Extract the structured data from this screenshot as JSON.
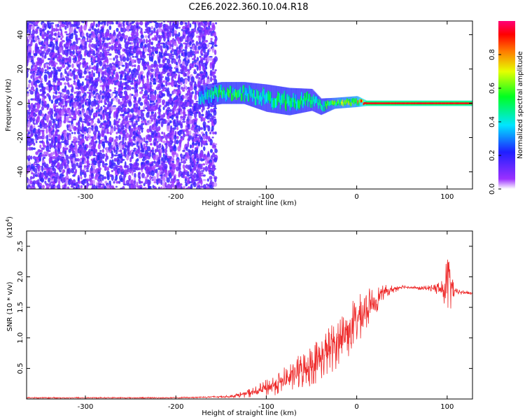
{
  "title": "C2E6.2022.360.10.04.R18",
  "colors": {
    "snr_line": "#ee2a2a",
    "plot_border": "#000000"
  },
  "chart_data": [
    {
      "type": "heatmap",
      "xlabel": "Height of straight line (km)",
      "ylabel": "Frequency (Hz)",
      "xlim": [
        -365,
        128
      ],
      "ylim": [
        -50,
        48
      ],
      "xticks": [
        {
          "value": -300,
          "label": "-300"
        },
        {
          "value": -200,
          "label": "-200"
        },
        {
          "value": -100,
          "label": "-100"
        },
        {
          "value": 0,
          "label": "0"
        },
        {
          "value": 100,
          "label": "100"
        }
      ],
      "yticks": [
        {
          "value": -40,
          "label": "-40"
        },
        {
          "value": -20,
          "label": "-20"
        },
        {
          "value": 0,
          "label": "0"
        },
        {
          "value": 20,
          "label": "20"
        },
        {
          "value": 40,
          "label": "40"
        }
      ],
      "colorbar": {
        "label": "Normalized spectral amplitude",
        "range": [
          0,
          1
        ],
        "colormap": "rainbow",
        "ticks": [
          {
            "value": 0.0,
            "label": "0.0"
          },
          {
            "value": 0.2,
            "label": "0.2"
          },
          {
            "value": 0.4,
            "label": "0.4"
          },
          {
            "value": 0.6,
            "label": "0.6"
          },
          {
            "value": 0.8,
            "label": "0.8"
          }
        ]
      },
      "noise_region": {
        "x_range": [
          -365,
          -155
        ],
        "y_range": [
          -50,
          48
        ],
        "amplitude": 0.15
      },
      "signal_track": [
        {
          "x": -175,
          "y": 4,
          "spread": 4,
          "amplitude": 0.35
        },
        {
          "x": -150,
          "y": 6,
          "spread": 4,
          "amplitude": 0.5
        },
        {
          "x": -125,
          "y": 6,
          "spread": 4,
          "amplitude": 0.5
        },
        {
          "x": -100,
          "y": 3,
          "spread": 5,
          "amplitude": 0.45
        },
        {
          "x": -75,
          "y": 1,
          "spread": 5,
          "amplitude": 0.5
        },
        {
          "x": -50,
          "y": 2,
          "spread": 4,
          "amplitude": 0.45
        },
        {
          "x": -40,
          "y": -2,
          "spread": 3,
          "amplitude": 0.45
        },
        {
          "x": -25,
          "y": 0,
          "spread": 2,
          "amplitude": 0.6
        },
        {
          "x": 0,
          "y": 1,
          "spread": 2,
          "amplitude": 0.7
        },
        {
          "x": 10,
          "y": 0,
          "spread": 1,
          "amplitude": 0.95
        },
        {
          "x": 128,
          "y": 0,
          "spread": 1,
          "amplitude": 0.95
        }
      ]
    },
    {
      "type": "line",
      "xlabel": "Height of straight line (km)",
      "ylabel": "SNR (10 * v/v)",
      "y_multiplier_label": "(x10",
      "y_multiplier_exp": "4",
      "xlim": [
        -365,
        128
      ],
      "ylim": [
        0,
        2.75
      ],
      "xticks": [
        {
          "value": -300,
          "label": "-300"
        },
        {
          "value": -200,
          "label": "-200"
        },
        {
          "value": -100,
          "label": "-100"
        },
        {
          "value": 0,
          "label": "0"
        },
        {
          "value": 100,
          "label": "100"
        }
      ],
      "yticks": [
        {
          "value": 0.5,
          "label": "0.5"
        },
        {
          "value": 1.0,
          "label": "1.0"
        },
        {
          "value": 1.5,
          "label": "1.5"
        },
        {
          "value": 2.0,
          "label": "2.0"
        },
        {
          "value": 2.5,
          "label": "2.5"
        }
      ],
      "series": [
        {
          "envelope": [
            {
              "x": -365,
              "y": 0.02,
              "noise": 0.01
            },
            {
              "x": -200,
              "y": 0.02,
              "noise": 0.01
            },
            {
              "x": -140,
              "y": 0.04,
              "noise": 0.02
            },
            {
              "x": -110,
              "y": 0.12,
              "noise": 0.1
            },
            {
              "x": -80,
              "y": 0.3,
              "noise": 0.22
            },
            {
              "x": -50,
              "y": 0.55,
              "noise": 0.35
            },
            {
              "x": -30,
              "y": 0.8,
              "noise": 0.4
            },
            {
              "x": -10,
              "y": 1.1,
              "noise": 0.45
            },
            {
              "x": 10,
              "y": 1.45,
              "noise": 0.35
            },
            {
              "x": 30,
              "y": 1.75,
              "noise": 0.12
            },
            {
              "x": 50,
              "y": 1.84,
              "noise": 0.03
            },
            {
              "x": 70,
              "y": 1.81,
              "noise": 0.03
            },
            {
              "x": 85,
              "y": 1.82,
              "noise": 0.06
            },
            {
              "x": 95,
              "y": 1.78,
              "noise": 0.22
            },
            {
              "x": 102,
              "y": 1.9,
              "noise": 0.6
            },
            {
              "x": 108,
              "y": 1.76,
              "noise": 0.06
            },
            {
              "x": 128,
              "y": 1.73,
              "noise": 0.02
            }
          ]
        }
      ]
    }
  ]
}
